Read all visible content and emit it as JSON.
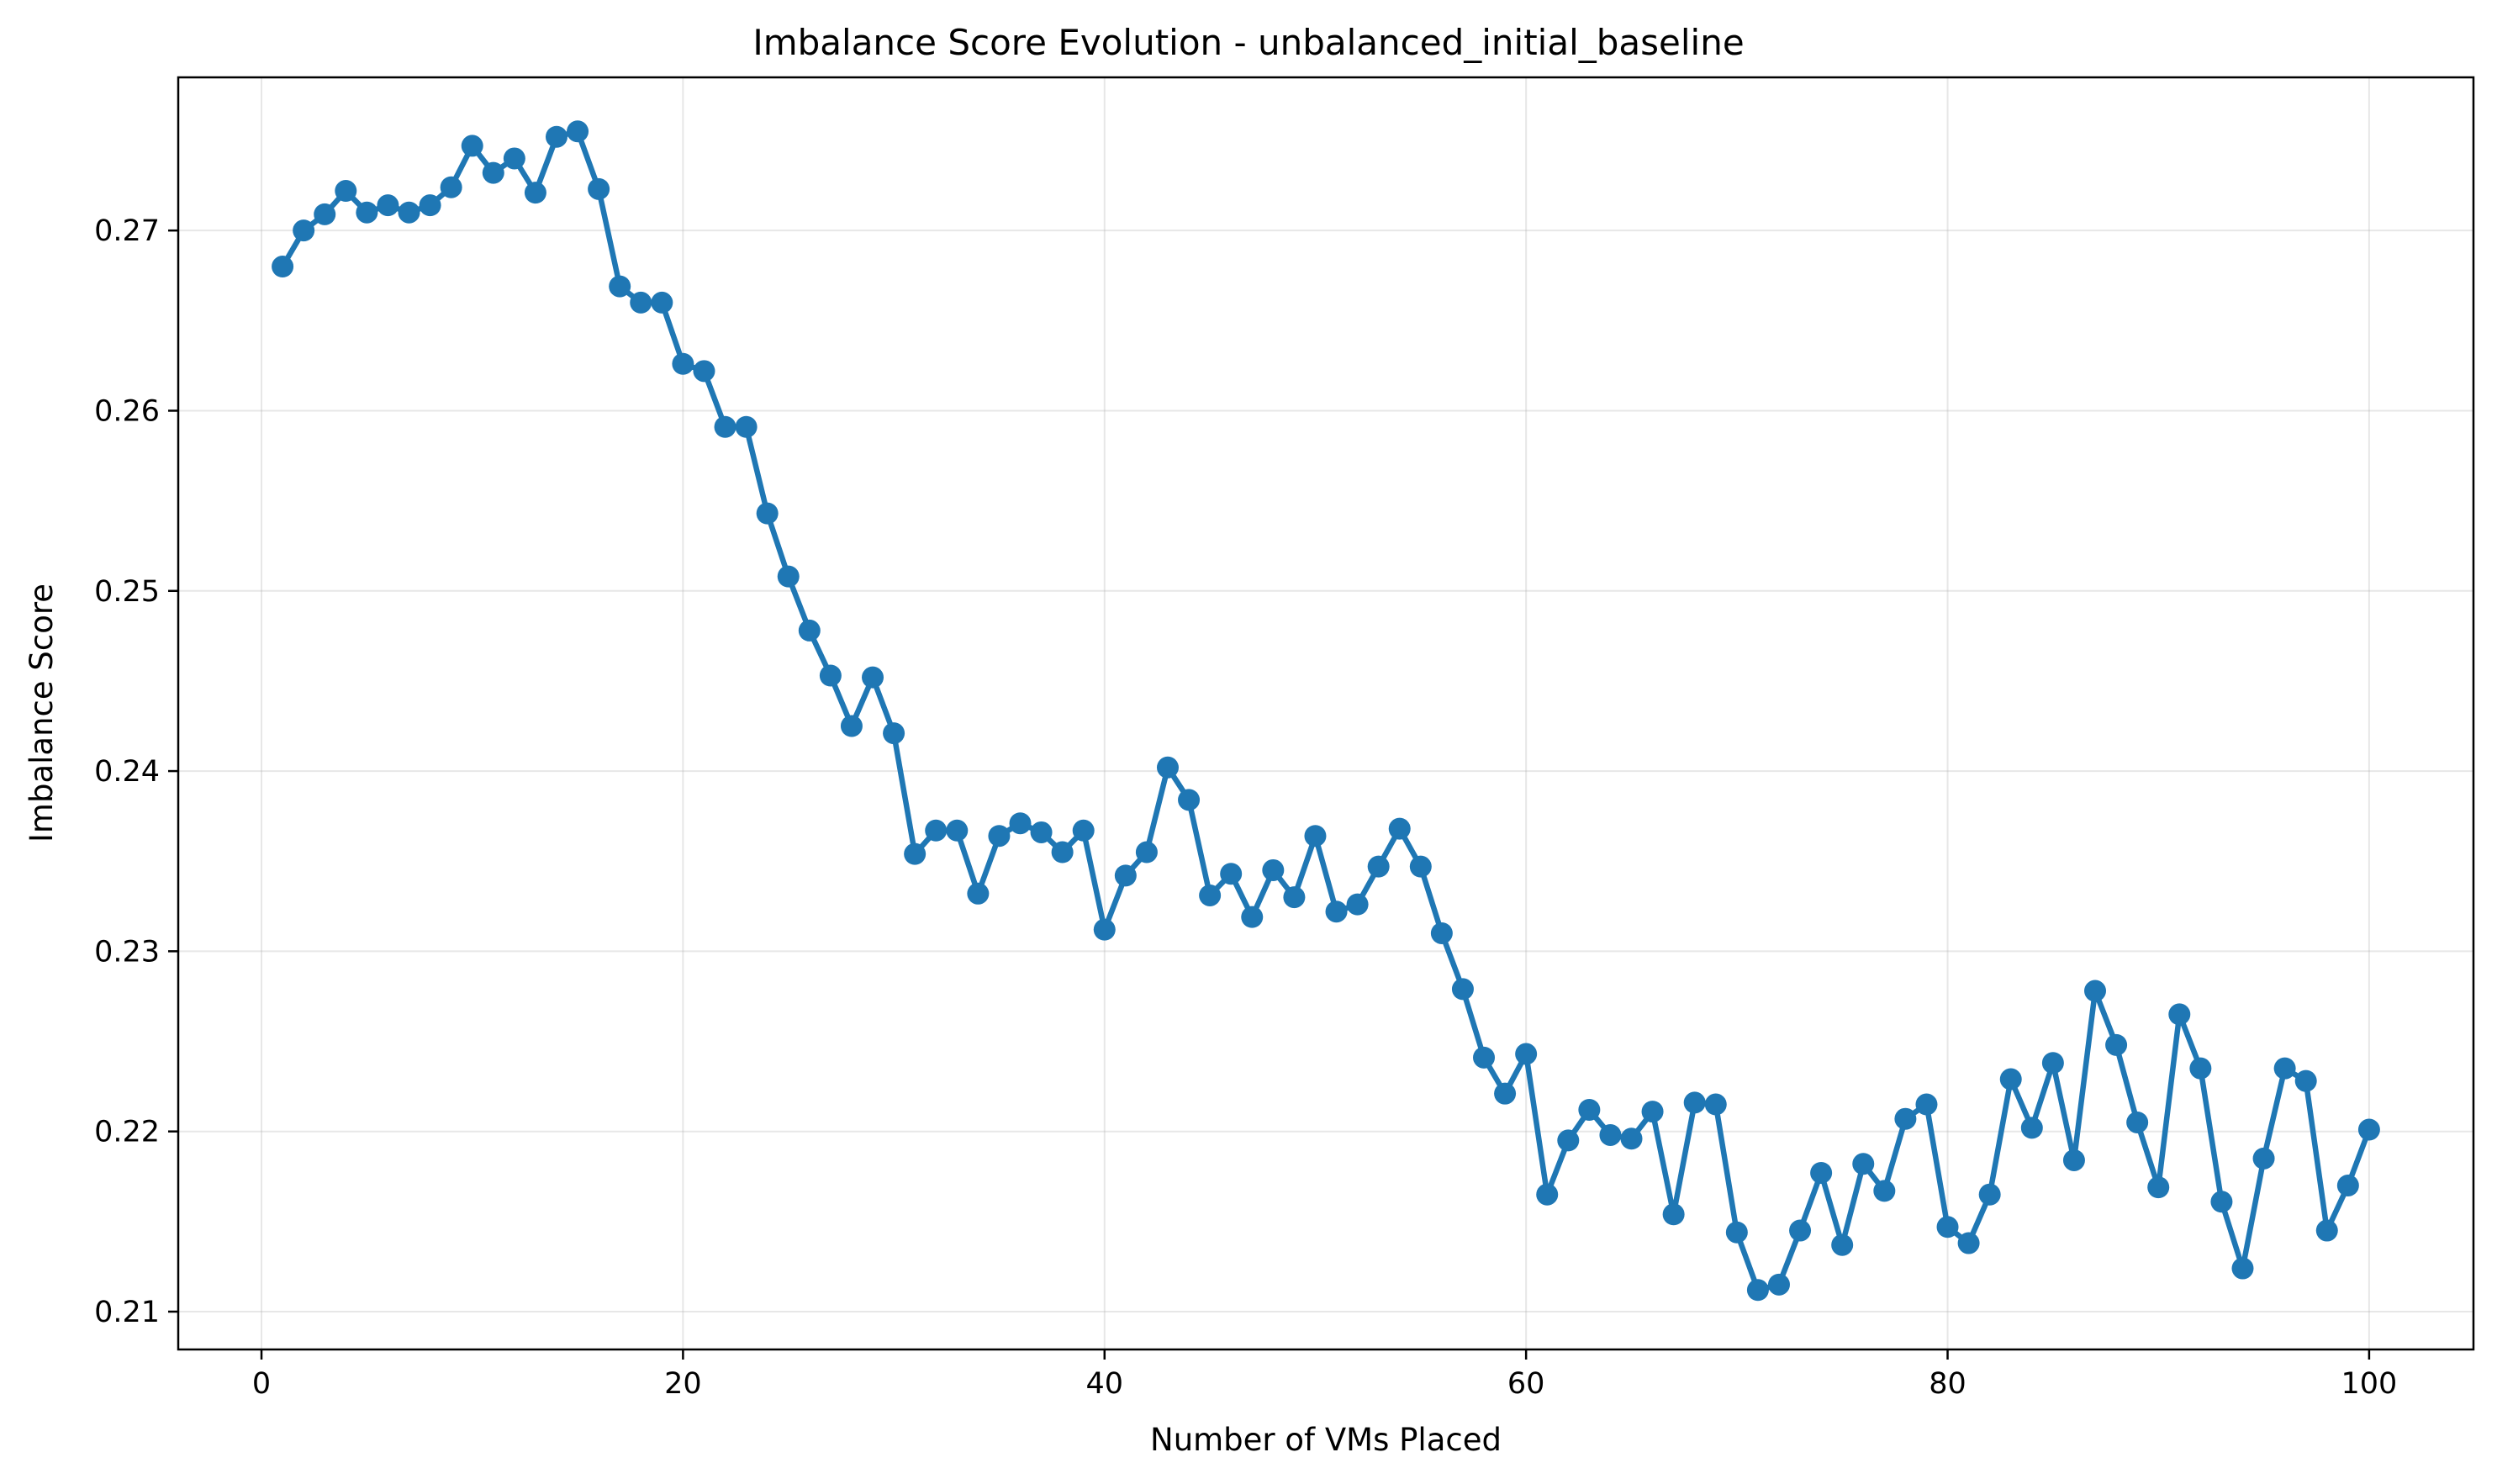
{
  "chart_data": {
    "type": "line",
    "title": "Imbalance Score Evolution - unbalanced_initial_baseline",
    "xlabel": "Number of VMs Placed",
    "ylabel": "Imbalance Score",
    "xlim": [
      -3.95,
      104.95
    ],
    "ylim": [
      0.2079,
      0.2785
    ],
    "xticks": [
      0,
      20,
      40,
      60,
      80,
      100
    ],
    "yticks": [
      0.21,
      0.22,
      0.23,
      0.24,
      0.25,
      0.26,
      0.27
    ],
    "ytick_labels": [
      "0.21",
      "0.22",
      "0.23",
      "0.24",
      "0.25",
      "0.26",
      "0.27"
    ],
    "grid": true,
    "color": "#1f77b4",
    "marker": "circle",
    "series": [
      {
        "x": [
          1,
          2,
          3,
          4,
          5,
          6,
          7,
          8,
          9,
          10,
          11,
          12,
          13,
          14,
          15,
          16,
          17,
          18,
          19,
          20,
          21,
          22,
          23,
          24,
          25,
          26,
          27,
          28,
          29,
          30,
          31,
          32,
          33,
          34,
          35,
          36,
          37,
          38,
          39,
          40,
          41,
          42,
          43,
          44,
          45,
          46,
          47,
          48,
          49,
          50,
          51,
          52,
          53,
          54,
          55,
          56,
          57,
          58,
          59,
          60,
          61,
          62,
          63,
          64,
          65,
          66,
          67,
          68,
          69,
          70,
          71,
          72,
          73,
          74,
          75,
          76,
          77,
          78,
          79,
          80,
          81,
          82,
          83,
          84,
          85,
          86,
          87,
          88,
          89,
          90,
          91,
          92,
          93,
          94,
          95,
          96,
          97,
          98,
          99,
          100
        ],
        "values": [
          0.268,
          0.27,
          0.2709,
          0.2722,
          0.271,
          0.2714,
          0.271,
          0.2714,
          0.2724,
          0.2747,
          0.2732,
          0.274,
          0.2721,
          0.2752,
          0.2755,
          0.2723,
          0.2669,
          0.266,
          0.266,
          0.2626,
          0.2622,
          0.2591,
          0.2591,
          0.2543,
          0.2508,
          0.2478,
          0.2453,
          0.2425,
          0.2452,
          0.2421,
          0.2354,
          0.2367,
          0.2367,
          0.2332,
          0.2364,
          0.2371,
          0.2366,
          0.2355,
          0.2367,
          0.2312,
          0.2342,
          0.2355,
          0.2402,
          0.2384,
          0.2331,
          0.2343,
          0.2319,
          0.2345,
          0.233,
          0.2364,
          0.2322,
          0.2326,
          0.2347,
          0.2368,
          0.2347,
          0.231,
          0.2279,
          0.2241,
          0.2221,
          0.2243,
          0.2165,
          0.2195,
          0.2212,
          0.2198,
          0.2196,
          0.2211,
          0.2154,
          0.2216,
          0.2215,
          0.2144,
          0.2112,
          0.2115,
          0.2145,
          0.2177,
          0.2137,
          0.2182,
          0.2167,
          0.2207,
          0.2215,
          0.2147,
          0.2138,
          0.2165,
          0.2229,
          0.2202,
          0.2238,
          0.2184,
          0.2278,
          0.2248,
          0.2205,
          0.2169,
          0.2265,
          0.2235,
          0.2161,
          0.2124,
          0.2185,
          0.2235,
          0.2228,
          0.2145,
          0.217,
          0.2201
        ]
      }
    ]
  }
}
